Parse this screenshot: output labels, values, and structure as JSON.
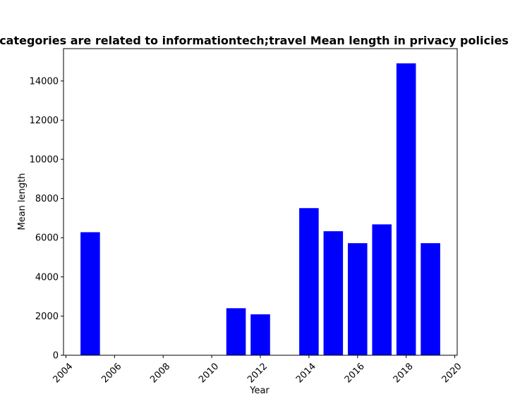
{
  "chart_data": {
    "type": "bar",
    "title": "categories are related to informationtech;travel Mean length in privacy policies",
    "xlabel": "Year",
    "ylabel": "Mean length",
    "x": [
      2005,
      2011,
      2012,
      2014,
      2015,
      2016,
      2017,
      2018,
      2019
    ],
    "values": [
      6280,
      2400,
      2090,
      7510,
      6330,
      5720,
      6680,
      14900,
      5720
    ],
    "xlim": [
      2003.9,
      2020.1
    ],
    "ylim": [
      0,
      15650
    ],
    "xticks": [
      2004,
      2006,
      2008,
      2010,
      2012,
      2014,
      2016,
      2018,
      2020
    ],
    "yticks": [
      0,
      2000,
      4000,
      6000,
      8000,
      10000,
      12000,
      14000
    ],
    "bar_color": "#0000ff",
    "grid": false,
    "legend": "none"
  }
}
